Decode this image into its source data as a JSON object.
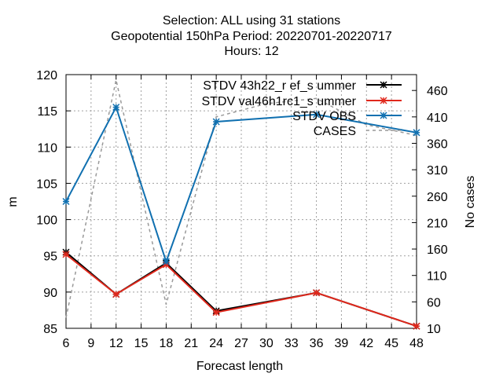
{
  "chart_data": {
    "type": "line",
    "title_lines": [
      "Selection: ALL using    31 stations",
      "Geopotential 150hPa   Period: 20220701-20220717",
      "Hours:  12"
    ],
    "xlabel": "Forecast length",
    "ylabel": "m",
    "y2label": "No cases",
    "xlim": [
      6,
      48
    ],
    "ylim": [
      85,
      120
    ],
    "y2lim": [
      10,
      490
    ],
    "xticks": [
      6,
      9,
      12,
      15,
      18,
      21,
      24,
      27,
      30,
      33,
      36,
      39,
      42,
      45,
      48
    ],
    "yticks": [
      85,
      90,
      95,
      100,
      105,
      110,
      115,
      120
    ],
    "y2ticks": [
      10,
      60,
      110,
      160,
      210,
      260,
      310,
      360,
      410,
      460
    ],
    "grid": true,
    "legend_position": "top-right",
    "series": [
      {
        "name": "STDV 43h22_ref_summer",
        "legend_label": "STDV 43h22_r ef_s ummer",
        "color": "#000000",
        "axis": "y",
        "marker": "star",
        "x": [
          6,
          12,
          18,
          24,
          36,
          48
        ],
        "values": [
          95.5,
          89.7,
          94.0,
          87.4,
          89.9,
          85.3
        ]
      },
      {
        "name": "STDV val46h1rc1_summer",
        "legend_label": "STDV val46h1rc1_s ummer",
        "color": "#e0281c",
        "axis": "y",
        "marker": "star",
        "x": [
          6,
          12,
          18,
          24,
          36,
          48
        ],
        "values": [
          95.2,
          89.7,
          93.8,
          87.2,
          89.9,
          85.3
        ]
      },
      {
        "name": "STDV OBS",
        "legend_label": "STDV OBS",
        "color": "#1070b0",
        "axis": "y",
        "marker": "star",
        "x": [
          6,
          12,
          18,
          24,
          36,
          48
        ],
        "values": [
          102.5,
          115.5,
          94.2,
          113.5,
          114.5,
          112.0
        ]
      },
      {
        "name": "CASES",
        "legend_label": "CASES",
        "color": "#999999",
        "axis": "y2",
        "dashed": true,
        "x": [
          6,
          12,
          18,
          24,
          30,
          36,
          42,
          48
        ],
        "values": [
          30,
          480,
          55,
          410,
          435,
          445,
          395,
          375
        ]
      }
    ]
  }
}
